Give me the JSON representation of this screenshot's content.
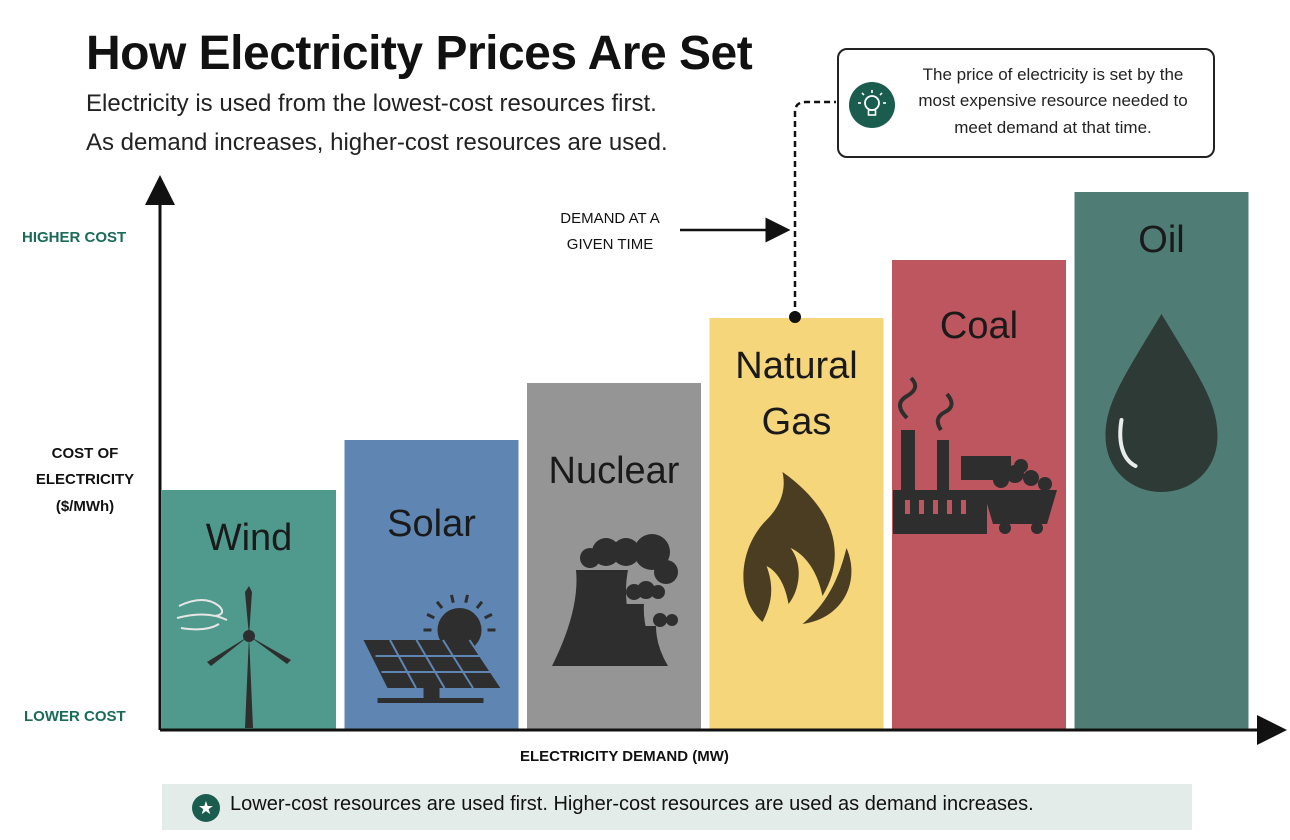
{
  "title": "How Electricity Prices Are Set",
  "subtitle_lines": [
    "Electricity is used from the lowest-cost resources first.",
    "As demand increases, higher-cost resources are used."
  ],
  "callout": {
    "text": "The price of electricity is set by the most expensive resource needed to meet demand at that time.",
    "icon": "lightbulb-icon"
  },
  "y_axis": {
    "high_label": "HIGHER COST",
    "low_label": "LOWER COST",
    "title_lines": [
      "COST OF",
      "ELECTRICITY",
      "($/MWh)"
    ]
  },
  "x_axis": {
    "title": "ELECTRICITY DEMAND (MW)"
  },
  "demand_marker": {
    "label_lines": [
      "DEMAND AT A",
      "GIVEN TIME"
    ],
    "resource": "Natural Gas"
  },
  "footer": {
    "text": "Lower-cost resources are used first. Higher-cost resources are used as demand increases.",
    "icon": "star-icon"
  },
  "colors": {
    "accent": "#1a5d4f",
    "label_green": "#1a6b5a",
    "footer_bg": "#e4ecea",
    "icon_fill": "#2e2e2e"
  },
  "chart_data": {
    "type": "bar",
    "categories": [
      "Wind",
      "Solar",
      "Nuclear",
      "Natural Gas",
      "Coal",
      "Oil"
    ],
    "values": [
      240,
      290,
      347,
      412,
      470,
      538
    ],
    "value_scale": "relative height (no numeric axis printed)",
    "ylim": [
      0,
      540
    ],
    "colors": [
      "#4f9a8c",
      "#5f86b3",
      "#959595",
      "#f5d67a",
      "#bd565e",
      "#4f7d76"
    ],
    "icons": [
      "wind-turbine-icon",
      "solar-panel-icon",
      "nuclear-plant-icon",
      "flame-icon",
      "coal-factory-icon",
      "oil-drop-icon"
    ],
    "label_lines": [
      [
        "Wind"
      ],
      [
        "Solar"
      ],
      [
        "Nuclear"
      ],
      [
        "Natural",
        "Gas"
      ],
      [
        "Coal"
      ],
      [
        "Oil"
      ]
    ],
    "legend": "none",
    "grid": false
  }
}
